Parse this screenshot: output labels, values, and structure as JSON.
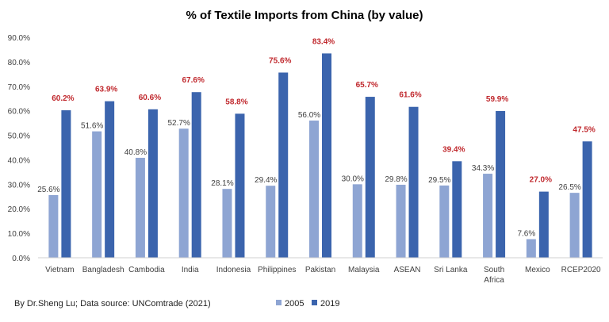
{
  "chart_data": {
    "type": "bar",
    "title": "% of Textile Imports from China (by value)",
    "xlabel": "",
    "ylabel": "",
    "ylim": [
      0,
      90
    ],
    "yticks": [
      "0.0%",
      "10.0%",
      "20.0%",
      "30.0%",
      "40.0%",
      "50.0%",
      "60.0%",
      "70.0%",
      "80.0%",
      "90.0%"
    ],
    "grid": false,
    "legend_position": "bottom",
    "categories": [
      [
        "Vietnam"
      ],
      [
        "Bangladesh"
      ],
      [
        "Cambodia"
      ],
      [
        "India"
      ],
      [
        "Indonesia"
      ],
      [
        "Philippines"
      ],
      [
        "Pakistan"
      ],
      [
        "Malaysia"
      ],
      [
        "ASEAN"
      ],
      [
        "Sri Lanka"
      ],
      [
        "South",
        "Africa"
      ],
      [
        "Mexico"
      ],
      [
        "RCEP2020"
      ]
    ],
    "series": [
      {
        "name": "2005",
        "color": "#8ea5d3",
        "values": [
          25.6,
          51.6,
          40.8,
          52.7,
          28.1,
          29.4,
          56.0,
          30.0,
          29.8,
          29.5,
          34.3,
          7.6,
          26.5
        ]
      },
      {
        "name": "2019",
        "color": "#3b64ad",
        "label_color": "#c0282d",
        "values": [
          60.2,
          63.9,
          60.6,
          67.6,
          58.8,
          75.6,
          83.4,
          65.7,
          61.6,
          39.4,
          59.9,
          27.0,
          47.5
        ]
      }
    ]
  },
  "footer": {
    "source": "By Dr.Sheng Lu; Data source: UNComtrade (2021)"
  }
}
